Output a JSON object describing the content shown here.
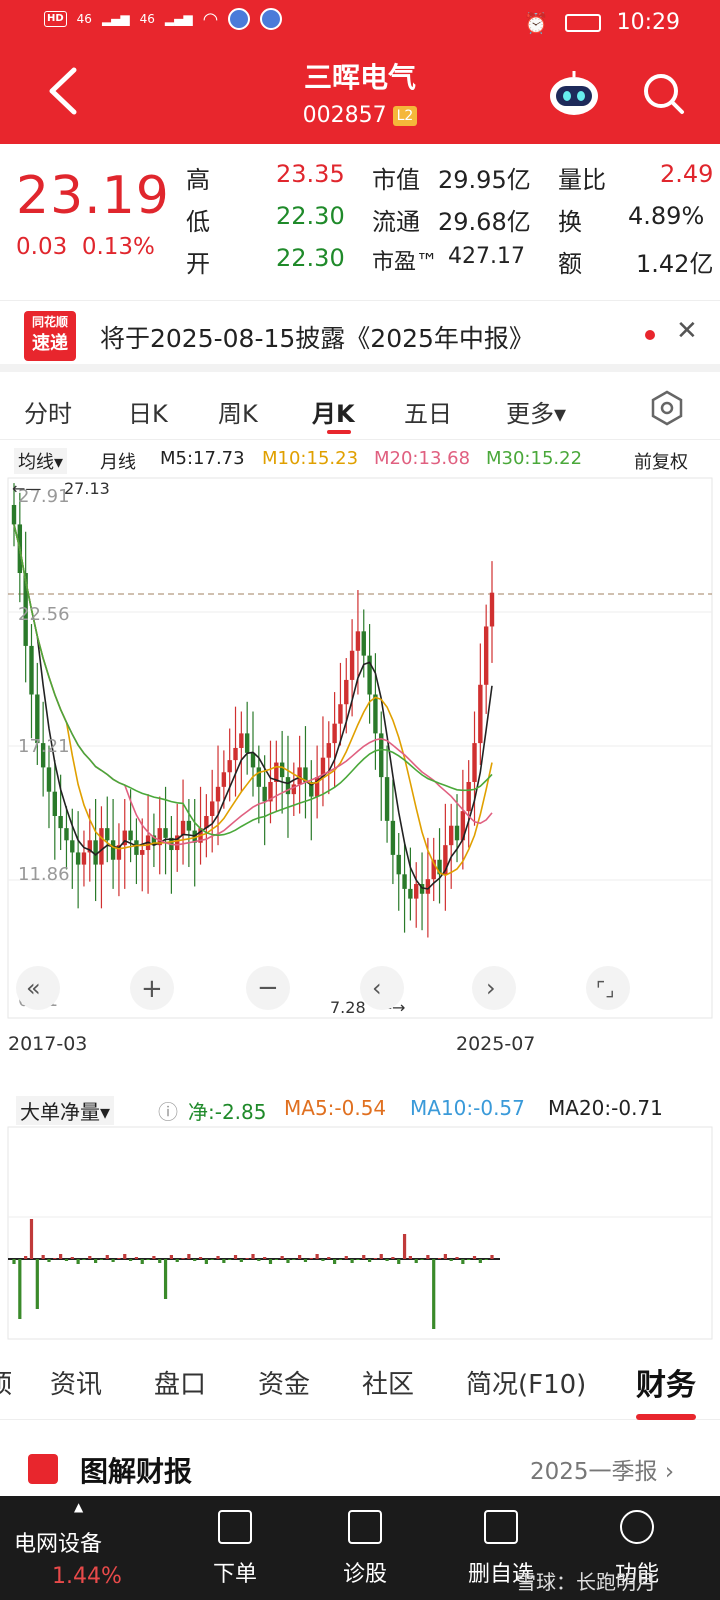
{
  "status_bar": {
    "time": "10:29",
    "net1": "46",
    "net2": "46"
  },
  "header": {
    "title": "三晖电气",
    "code": "002857",
    "level": "L2"
  },
  "quote": {
    "price": "23.19",
    "change": "0.03",
    "change_pct": "0.13%",
    "high_label": "高",
    "high": "23.35",
    "low_label": "低",
    "low": "22.30",
    "open_label": "开",
    "open": "22.30",
    "mktcap_label": "市值",
    "mktcap": "29.95亿",
    "float_label": "流通",
    "float": "29.68亿",
    "pe_label": "市盈™",
    "pe": "427.17",
    "volratio_label": "量比",
    "volratio": "2.49",
    "turnover_label": "换",
    "turnover": "4.89%",
    "amount_label": "额",
    "amount": "1.42亿"
  },
  "notice": {
    "logo_top": "同花顺",
    "logo_bottom": "速递",
    "text": "将于2025-08-15披露《2025年中报》",
    "close": "✕"
  },
  "tabs": [
    "分时",
    "日K",
    "周K",
    "月K",
    "五日",
    "更多▾"
  ],
  "ma_row": {
    "selector": "均线▾",
    "period": "月线",
    "m5": "M5:17.73",
    "m10": "M10:15.23",
    "m20": "M20:13.68",
    "m30": "M30:15.22",
    "adjust": "前复权",
    "colors": {
      "m5": "#222222",
      "m10": "#e0a000",
      "m20": "#e06080",
      "m30": "#4aa83a"
    }
  },
  "kchart": {
    "y_ticks": [
      "27.91",
      "22.56",
      "17.21",
      "11.86",
      "6.51"
    ],
    "max_label": "27.13",
    "min_label": "7.28",
    "x_start": "2017-03",
    "x_end": "2025-07"
  },
  "chart_data": {
    "type": "candlestick",
    "ylim": [
      6.51,
      27.91
    ],
    "y_ticks": [
      27.91,
      22.56,
      17.21,
      11.86,
      6.51
    ],
    "x_range": [
      "2017-03",
      "2025-07"
    ],
    "annotations": {
      "high": 27.13,
      "low": 7.28
    },
    "last_close": 23.19
  },
  "vol_row": {
    "selector": "大单净量▾",
    "net": "净:-2.85",
    "ma5": "MA5:-0.54",
    "ma10": "MA10:-0.57",
    "ma20": "MA20:-0.71",
    "colors": {
      "net": "#1f8a2a",
      "ma5": "#e07020",
      "ma10": "#3a9ad9",
      "ma20": "#222222"
    }
  },
  "bottom_tabs": [
    "资讯",
    "盘口",
    "资金",
    "社区",
    "简况(F10)",
    "财务"
  ],
  "report": {
    "title": "图解财报",
    "period": "2025一季报 ›"
  },
  "bottom_nav": {
    "sector": "电网设备",
    "sector_pct": "1.44%",
    "items": [
      "下单",
      "诊股",
      "删自选",
      "功能"
    ],
    "watermark": "雪球：长跑明月"
  }
}
